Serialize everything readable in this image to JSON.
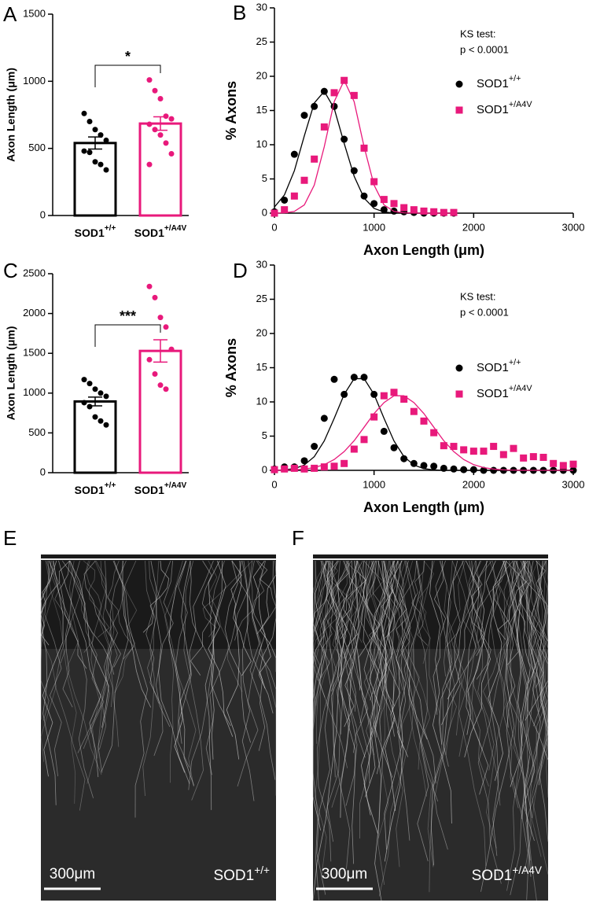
{
  "chart_data": [
    {
      "type": "bar",
      "panel_label": "A",
      "ylabel": "Axon Length (μm)",
      "categories": [
        "SOD1+/+",
        "SOD1+/A4V"
      ],
      "colors": [
        "#000000",
        "#e8197b"
      ],
      "values": [
        540,
        685
      ],
      "errors": [
        45,
        50
      ],
      "points": [
        [
          760,
          700,
          640,
          600,
          560,
          480,
          470,
          400,
          380,
          340
        ],
        [
          1010,
          930,
          870,
          740,
          720,
          680,
          640,
          600,
          540,
          460,
          380
        ]
      ],
      "ylim": [
        0,
        1500
      ],
      "yticks": [
        0,
        500,
        1000,
        1500
      ],
      "significance": "*"
    },
    {
      "type": "scatter",
      "panel_label": "B",
      "xlabel": "Axon Length (μm)",
      "ylabel": "% Axons",
      "annotation": [
        "KS test:",
        "p < 0.0001"
      ],
      "xlim": [
        0,
        3000
      ],
      "xticks": [
        0,
        1000,
        2000,
        3000
      ],
      "ylim": [
        0,
        30
      ],
      "yticks": [
        0,
        5,
        10,
        15,
        20,
        25,
        30
      ],
      "series": [
        {
          "name": "SOD1+/+",
          "color": "#000000",
          "marker": "circle",
          "x": [
            0,
            100,
            200,
            300,
            400,
            500,
            600,
            700,
            800,
            900,
            1000,
            1100,
            1200,
            1300,
            1400,
            1500,
            1600,
            1700,
            1800
          ],
          "values": [
            0.2,
            1.9,
            8.6,
            14.3,
            15.6,
            17.8,
            15.6,
            10.8,
            6.2,
            2.5,
            1.4,
            0.5,
            0.3,
            0.2,
            0.1,
            0,
            0,
            0,
            0
          ],
          "fit": [
            0.89,
            2.66,
            6.2,
            11.3,
            16.1,
            17.8,
            15.3,
            10.2,
            5.4,
            2.2,
            0.69,
            0.17,
            0.03,
            0,
            0,
            0,
            0,
            0,
            0
          ]
        },
        {
          "name": "SOD1+/A4V",
          "color": "#e8197b",
          "marker": "square",
          "x": [
            0,
            100,
            200,
            300,
            400,
            500,
            600,
            700,
            800,
            900,
            1000,
            1100,
            1200,
            1300,
            1400,
            1500,
            1600,
            1700,
            1800
          ],
          "values": [
            0,
            0.5,
            2.5,
            4.8,
            7.9,
            12.6,
            17.6,
            19.4,
            17.2,
            9.5,
            4.6,
            2.0,
            1.4,
            0.8,
            0.5,
            0.3,
            0.2,
            0.1,
            0.1
          ],
          "fit": [
            0,
            0.04,
            0.26,
            1.2,
            4.1,
            9.7,
            16.3,
            19.4,
            16.3,
            9.7,
            4.1,
            1.2,
            0.26,
            0.04,
            0,
            0,
            0,
            0,
            0
          ]
        }
      ]
    },
    {
      "type": "bar",
      "panel_label": "C",
      "ylabel": "Axon Length (μm)",
      "categories": [
        "SOD1+/+",
        "SOD1+/A4V"
      ],
      "colors": [
        "#000000",
        "#e8197b"
      ],
      "values": [
        895,
        1530
      ],
      "errors": [
        55,
        140
      ],
      "points": [
        [
          1170,
          1120,
          1050,
          1000,
          960,
          880,
          830,
          700,
          650,
          600
        ],
        [
          2340,
          2200,
          1950,
          1830,
          1550,
          1420,
          1240,
          1100,
          1050
        ]
      ],
      "ylim": [
        0,
        2500
      ],
      "yticks": [
        0,
        500,
        1000,
        1500,
        2000,
        2500
      ],
      "significance": "***"
    },
    {
      "type": "scatter",
      "panel_label": "D",
      "xlabel": "Axon Length (μm)",
      "ylabel": "% Axons",
      "annotation": [
        "KS test:",
        "p < 0.0001"
      ],
      "xlim": [
        0,
        3000
      ],
      "xticks": [
        0,
        1000,
        2000,
        3000
      ],
      "ylim": [
        0,
        30
      ],
      "yticks": [
        0,
        5,
        10,
        15,
        20,
        25,
        30
      ],
      "series": [
        {
          "name": "SOD1+/+",
          "color": "#000000",
          "marker": "circle",
          "x": [
            0,
            100,
            200,
            300,
            400,
            500,
            600,
            700,
            800,
            900,
            1000,
            1100,
            1200,
            1300,
            1400,
            1500,
            1600,
            1700,
            1800,
            1900,
            2000,
            2100,
            2200,
            2300,
            2400,
            2500,
            2600,
            2700,
            2800,
            2900,
            3000
          ],
          "values": [
            0.2,
            0.5,
            0.5,
            1.4,
            3.5,
            7.6,
            13.3,
            11.1,
            13.6,
            13.6,
            11.1,
            5.7,
            3.3,
            1.7,
            1.0,
            0.7,
            0.6,
            0.3,
            0.2,
            0.1,
            0.1,
            0,
            0,
            0,
            0,
            0,
            0,
            0,
            0,
            0,
            0
          ],
          "fit": [
            0.01,
            0.07,
            0.25,
            0.78,
            2.0,
            4.3,
            7.6,
            11.1,
            13.4,
            13.4,
            11.1,
            7.6,
            4.3,
            2.0,
            0.78,
            0.25,
            0.07,
            0.01,
            0,
            0,
            0,
            0,
            0,
            0,
            0,
            0,
            0,
            0,
            0,
            0,
            0
          ]
        },
        {
          "name": "SOD1+/A4V",
          "color": "#e8197b",
          "marker": "square",
          "x": [
            0,
            100,
            200,
            300,
            400,
            500,
            600,
            700,
            800,
            900,
            1000,
            1100,
            1200,
            1300,
            1400,
            1500,
            1600,
            1700,
            1800,
            1900,
            2000,
            2100,
            2200,
            2300,
            2400,
            2500,
            2600,
            2700,
            2800,
            2900,
            3000
          ],
          "values": [
            0.1,
            0.2,
            0.3,
            0.2,
            0.3,
            0.5,
            0.6,
            1.0,
            3.1,
            4.5,
            7.8,
            10.9,
            11.4,
            10.4,
            8.6,
            7.2,
            5.5,
            3.6,
            3.5,
            3.0,
            2.8,
            2.8,
            3.5,
            2.3,
            3.2,
            1.8,
            2.0,
            1.9,
            1.0,
            0.7,
            0.9
          ],
          "fit": [
            0.01,
            0.03,
            0.07,
            0.18,
            0.4,
            0.83,
            1.58,
            2.74,
            4.33,
            6.3,
            8.3,
            9.9,
            10.9,
            10.9,
            9.9,
            8.3,
            6.3,
            4.33,
            2.74,
            1.58,
            0.83,
            0.4,
            0.18,
            0.07,
            0.03,
            0.01,
            0,
            0,
            0,
            0,
            0
          ]
        }
      ]
    }
  ],
  "images": [
    {
      "panel_label": "E",
      "scale_bar": "300μm",
      "label": "SOD1+/+"
    },
    {
      "panel_label": "F",
      "scale_bar": "300μm",
      "label": "SOD1+/A4V"
    }
  ]
}
